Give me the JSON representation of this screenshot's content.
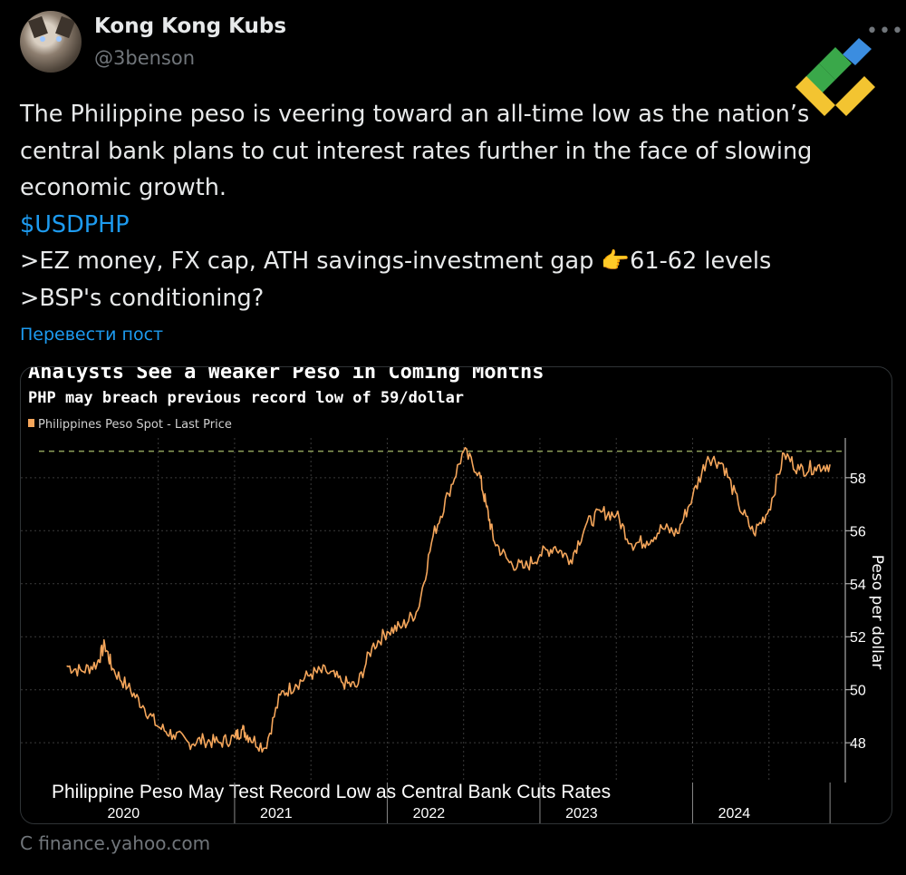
{
  "author": {
    "name": "Kong Kong Kubs",
    "handle": "@3benson"
  },
  "tweet": {
    "line1": "The Philippine peso is veering toward an all-time low as the nation’s",
    "line2": "central bank plans to cut interest rates further in the face of slowing",
    "line3": "economic growth.",
    "cashtag": "$USDPHP",
    "line5_pre": ">EZ money, FX cap, ATH savings-investment gap ",
    "emoji": "👉",
    "line5_post": "61-62 levels",
    "line6": ">BSP's conditioning?"
  },
  "translate_label": "Перевести пост",
  "source_label": "С finance.yahoo.com",
  "chart_data": {
    "type": "line",
    "title": "Analysts See a Weaker Peso in Coming Months",
    "subtitle": "PHP may breach previous record low of 59/dollar",
    "legend": "Philippines Peso Spot - Last Price",
    "bottom_caption": "Philippine Peso May Test Record Low as Central Bank Cuts Rates",
    "ylabel": "Peso per dollar",
    "ylim": [
      46.5,
      59.5
    ],
    "yticks": [
      48,
      50,
      52,
      54,
      56,
      58
    ],
    "xlabels": [
      "2020",
      "2021",
      "2022",
      "2023",
      "2024"
    ],
    "reference_line": 59,
    "series_color": "#f5a65b",
    "series": [
      {
        "x": [
          2019.9,
          2020.0,
          2020.1,
          2020.15,
          2020.2,
          2020.3,
          2020.4,
          2020.5,
          2020.6,
          2020.7,
          2020.8,
          2020.9,
          2021.0,
          2021.05,
          2021.1,
          2021.2,
          2021.3,
          2021.4,
          2021.5,
          2021.6,
          2021.7,
          2021.8,
          2021.9,
          2022.0,
          2022.1,
          2022.2,
          2022.3,
          2022.4,
          2022.5,
          2022.6,
          2022.65,
          2022.7,
          2022.8,
          2022.9,
          2023.0,
          2023.1,
          2023.2,
          2023.3,
          2023.4,
          2023.5,
          2023.6,
          2023.7,
          2023.8,
          2023.9,
          2024.0,
          2024.1,
          2024.2,
          2024.3,
          2024.4,
          2024.5,
          2024.6,
          2024.7,
          2024.8,
          2024.9
        ],
        "values": [
          50.9,
          50.7,
          51.0,
          51.7,
          50.8,
          50.1,
          49.4,
          48.6,
          48.3,
          48.0,
          48.1,
          48.0,
          48.2,
          48.5,
          48.2,
          47.8,
          49.8,
          50.2,
          50.6,
          50.7,
          50.3,
          50.1,
          51.6,
          52.2,
          52.4,
          53.0,
          55.8,
          57.4,
          59.0,
          58.2,
          56.9,
          55.6,
          54.8,
          54.6,
          55.1,
          55.4,
          54.9,
          56.2,
          56.7,
          56.6,
          55.5,
          55.6,
          56.1,
          55.9,
          57.3,
          58.8,
          58.5,
          57.0,
          55.9,
          56.8,
          58.9,
          58.3,
          58.4,
          58.5
        ]
      }
    ]
  }
}
